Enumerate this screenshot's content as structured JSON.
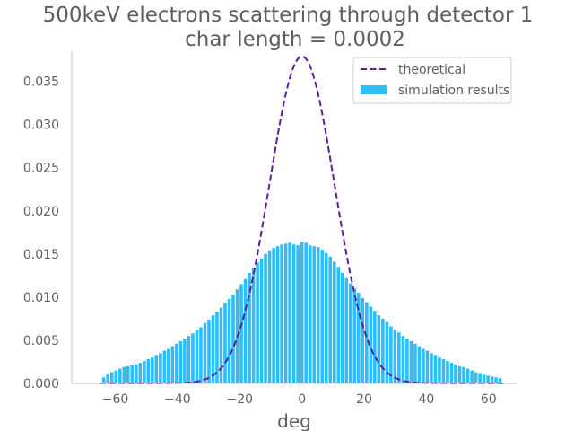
{
  "chart_data": {
    "type": "bar",
    "title": [
      "500keV electrons scattering through detector 1",
      "char length = 0.0002"
    ],
    "xlabel": "deg",
    "ylabel": "",
    "xlim": [
      -74,
      69
    ],
    "ylim": [
      0,
      0.0385
    ],
    "xticks": [
      -60,
      -40,
      -20,
      0,
      20,
      40,
      60
    ],
    "xtick_labels": [
      "−60",
      "−40",
      "−20",
      "0",
      "20",
      "40",
      "60"
    ],
    "yticks": [
      0.0,
      0.005,
      0.01,
      0.015,
      0.02,
      0.025,
      0.03,
      0.035
    ],
    "ytick_labels": [
      "0.000",
      "0.005",
      "0.010",
      "0.015",
      "0.020",
      "0.025",
      "0.030",
      "0.035"
    ],
    "grid": false,
    "legend": {
      "position": "upper-right",
      "entries": [
        {
          "label": "theoretical",
          "style": "dashed-line",
          "color": "#5b1f9a"
        },
        {
          "label": "simulation results",
          "style": "bar",
          "color": "#2ebdf7"
        }
      ]
    },
    "series": [
      {
        "name": "theoretical",
        "kind": "dashed-line",
        "color": "#5b1f9a",
        "curve": "gaussian",
        "mean": 0.0,
        "stddev": 10.5,
        "peak": 0.0379
      },
      {
        "name": "simulation results",
        "kind": "histogram",
        "color": "#2ebdf7",
        "bin_width": 1.3,
        "x": [
          -63.7,
          -62.4,
          -61.1,
          -59.8,
          -58.5,
          -57.2,
          -55.9,
          -54.6,
          -53.3,
          -52.0,
          -50.7,
          -49.4,
          -48.1,
          -46.8,
          -45.5,
          -44.2,
          -42.9,
          -41.6,
          -40.3,
          -39.0,
          -37.7,
          -36.4,
          -35.1,
          -33.8,
          -32.5,
          -31.2,
          -29.9,
          -28.6,
          -27.3,
          -26.0,
          -24.7,
          -23.4,
          -22.1,
          -20.8,
          -19.5,
          -18.2,
          -16.9,
          -15.6,
          -14.3,
          -13.0,
          -11.7,
          -10.4,
          -9.1,
          -7.8,
          -6.5,
          -5.2,
          -3.9,
          -2.6,
          -1.3,
          0.0,
          1.3,
          2.6,
          3.9,
          5.2,
          6.5,
          7.8,
          9.1,
          10.4,
          11.7,
          13.0,
          14.3,
          15.6,
          16.9,
          18.2,
          19.5,
          20.8,
          22.1,
          23.4,
          24.7,
          26.0,
          27.3,
          28.6,
          29.9,
          31.2,
          32.5,
          33.8,
          35.1,
          36.4,
          37.7,
          39.0,
          40.3,
          41.6,
          42.9,
          44.2,
          45.5,
          46.8,
          48.1,
          49.4,
          50.7,
          52.0,
          53.3,
          54.6,
          55.9,
          57.2,
          58.5,
          59.8,
          61.1,
          62.4,
          63.7
        ],
        "values": [
          0.0007,
          0.0011,
          0.0013,
          0.0015,
          0.0017,
          0.0019,
          0.002,
          0.0021,
          0.0022,
          0.0024,
          0.0026,
          0.0028,
          0.003,
          0.0033,
          0.0035,
          0.0038,
          0.004,
          0.0043,
          0.0046,
          0.0049,
          0.0052,
          0.0055,
          0.0058,
          0.0062,
          0.0065,
          0.007,
          0.0074,
          0.0079,
          0.0083,
          0.0088,
          0.0093,
          0.0098,
          0.0103,
          0.0109,
          0.0115,
          0.0121,
          0.0128,
          0.0134,
          0.014,
          0.0145,
          0.015,
          0.0154,
          0.0157,
          0.0159,
          0.0161,
          0.0162,
          0.0163,
          0.0161,
          0.016,
          0.0164,
          0.0163,
          0.016,
          0.0159,
          0.0158,
          0.0155,
          0.0151,
          0.0147,
          0.0141,
          0.0135,
          0.0128,
          0.0122,
          0.0116,
          0.011,
          0.0105,
          0.0099,
          0.0094,
          0.0089,
          0.0084,
          0.0079,
          0.0075,
          0.0071,
          0.0066,
          0.0062,
          0.0059,
          0.0055,
          0.0052,
          0.0049,
          0.0046,
          0.0043,
          0.004,
          0.0038,
          0.0035,
          0.0033,
          0.003,
          0.0028,
          0.0026,
          0.0024,
          0.0022,
          0.002,
          0.0019,
          0.0017,
          0.0015,
          0.0013,
          0.0012,
          0.001,
          0.0009,
          0.0008,
          0.0007,
          0.0006
        ]
      }
    ]
  }
}
